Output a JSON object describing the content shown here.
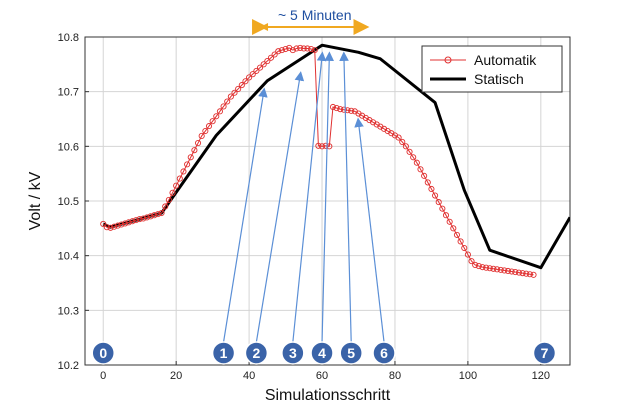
{
  "chart_data": {
    "type": "line",
    "xlabel": "Simulationsschritt",
    "ylabel": "Volt / kV",
    "xlim": [
      -5,
      128
    ],
    "ylim": [
      10.2,
      10.8
    ],
    "xticks": [
      0,
      20,
      40,
      60,
      80,
      100,
      120
    ],
    "yticks": [
      10.2,
      10.3,
      10.4,
      10.5,
      10.6,
      10.7,
      10.8
    ],
    "grid": true,
    "legend_position": "top-right",
    "series": [
      {
        "name": "Automatik",
        "color": "#e03030",
        "marker": "circle",
        "x": [
          0,
          1,
          2,
          3,
          4,
          5,
          6,
          7,
          8,
          9,
          10,
          11,
          12,
          13,
          14,
          15,
          16,
          17,
          18,
          19,
          20,
          21,
          22,
          23,
          24,
          25,
          26,
          27,
          28,
          29,
          30,
          31,
          32,
          33,
          34,
          35,
          36,
          37,
          38,
          39,
          40,
          41,
          42,
          43,
          44,
          45,
          46,
          47,
          48,
          49,
          50,
          51,
          52,
          53,
          54,
          55,
          56,
          57,
          58,
          59,
          60,
          61,
          62,
          63,
          64,
          65,
          66,
          67,
          68,
          69,
          70,
          71,
          72,
          73,
          74,
          75,
          76,
          77,
          78,
          79,
          80,
          81,
          82,
          83,
          84,
          85,
          86,
          87,
          88,
          89,
          90,
          91,
          92,
          93,
          94,
          95,
          96,
          97,
          98,
          99,
          100,
          101,
          102,
          103,
          104,
          105,
          106,
          107,
          108,
          109,
          110,
          111,
          112,
          113,
          114,
          115,
          116,
          117,
          118
        ],
        "y": [
          10.458,
          10.452,
          10.451,
          10.453,
          10.455,
          10.457,
          10.459,
          10.461,
          10.463,
          10.465,
          10.467,
          10.468,
          10.47,
          10.472,
          10.474,
          10.476,
          10.478,
          10.49,
          10.502,
          10.515,
          10.528,
          10.541,
          10.554,
          10.567,
          10.58,
          10.593,
          10.606,
          10.619,
          10.628,
          10.637,
          10.646,
          10.655,
          10.664,
          10.673,
          10.682,
          10.691,
          10.698,
          10.705,
          10.712,
          10.719,
          10.726,
          10.732,
          10.738,
          10.744,
          10.75,
          10.756,
          10.762,
          10.768,
          10.774,
          10.776,
          10.778,
          10.78,
          10.776,
          10.779,
          10.78,
          10.779,
          10.779,
          10.778,
          10.776,
          10.601,
          10.6,
          10.601,
          10.6,
          10.672,
          10.67,
          10.668,
          10.667,
          10.666,
          10.665,
          10.664,
          10.66,
          10.656,
          10.652,
          10.648,
          10.644,
          10.64,
          10.636,
          10.632,
          10.628,
          10.624,
          10.62,
          10.616,
          10.608,
          10.6,
          10.59,
          10.58,
          10.57,
          10.558,
          10.546,
          10.534,
          10.522,
          10.51,
          10.498,
          10.486,
          10.474,
          10.462,
          10.45,
          10.438,
          10.426,
          10.414,
          10.402,
          10.39,
          10.383,
          10.381,
          10.379,
          10.378,
          10.377,
          10.376,
          10.375,
          10.374,
          10.373,
          10.372,
          10.371,
          10.37,
          10.369,
          10.368,
          10.367,
          10.366,
          10.365
        ]
      },
      {
        "name": "Statisch",
        "color": "#000000",
        "x": [
          0,
          2,
          16,
          31,
          45,
          60,
          70,
          76,
          91,
          99,
          106,
          120,
          128
        ],
        "y": [
          10.458,
          10.452,
          10.478,
          10.62,
          10.72,
          10.785,
          10.772,
          10.76,
          10.68,
          10.52,
          10.41,
          10.378,
          10.47
        ]
      }
    ],
    "annotations": {
      "top_note": "~ 5 Minuten",
      "top_note_range": [
        43,
        73
      ],
      "markers": [
        {
          "label": "0",
          "x": 0,
          "target_x": null,
          "target_y": null
        },
        {
          "label": "1",
          "x": 33,
          "target_x": 44,
          "target_y": 10.71
        },
        {
          "label": "2",
          "x": 42,
          "target_x": 54,
          "target_y": 10.74
        },
        {
          "label": "3",
          "x": 52,
          "target_x": 60,
          "target_y": 10.776
        },
        {
          "label": "4",
          "x": 60,
          "target_x": 62,
          "target_y": 10.776
        },
        {
          "label": "5",
          "x": 68,
          "target_x": 66,
          "target_y": 10.776
        },
        {
          "label": "6",
          "x": 77,
          "target_x": 70,
          "target_y": 10.655
        },
        {
          "label": "7",
          "x": 121,
          "target_x": null,
          "target_y": null
        }
      ]
    },
    "colors": {
      "marker_fill": "#3a63a8",
      "arrow": "#5b8fd6",
      "note_arrow": "#f0a820",
      "note_text": "#1f4fa0"
    }
  }
}
